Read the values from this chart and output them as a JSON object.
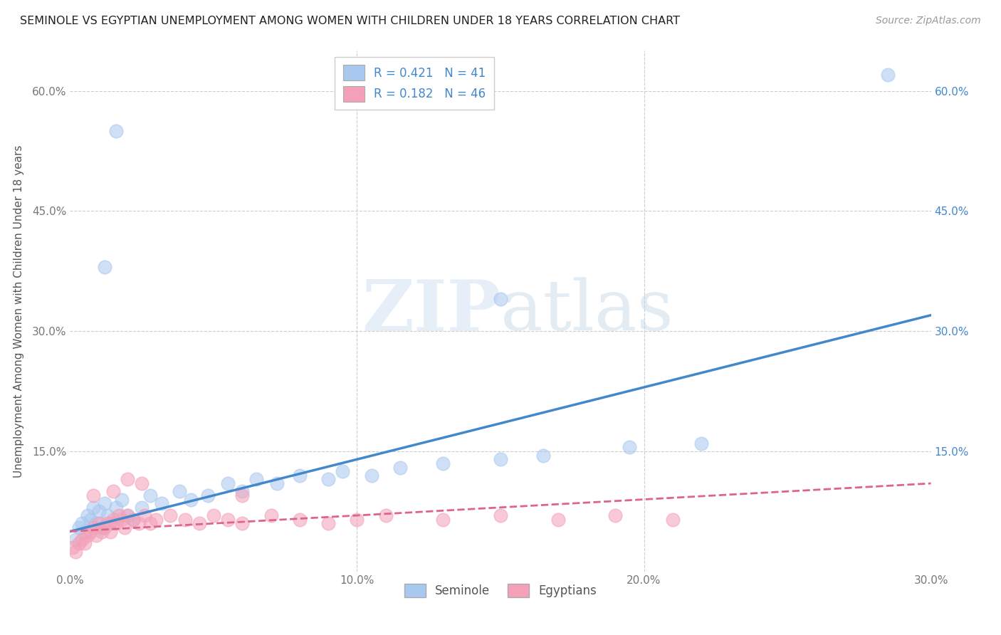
{
  "title": "SEMINOLE VS EGYPTIAN UNEMPLOYMENT AMONG WOMEN WITH CHILDREN UNDER 18 YEARS CORRELATION CHART",
  "source": "Source: ZipAtlas.com",
  "xlim": [
    0.0,
    0.3
  ],
  "ylim": [
    0.0,
    0.65
  ],
  "legend_r1": "R = 0.421",
  "legend_n1": "N = 41",
  "legend_r2": "R = 0.182",
  "legend_n2": "N = 46",
  "seminole_color": "#a8c8f0",
  "egyptian_color": "#f4a0b8",
  "seminole_line_color": "#4488cc",
  "egyptian_line_color": "#dd6688",
  "ylabel": "Unemployment Among Women with Children Under 18 years",
  "seminole_x": [
    0.002,
    0.003,
    0.004,
    0.005,
    0.006,
    0.007,
    0.008,
    0.009,
    0.01,
    0.011,
    0.012,
    0.013,
    0.014,
    0.016,
    0.018,
    0.02,
    0.022,
    0.025,
    0.028,
    0.032,
    0.038,
    0.042,
    0.048,
    0.055,
    0.06,
    0.065,
    0.072,
    0.08,
    0.09,
    0.095,
    0.105,
    0.115,
    0.13,
    0.15,
    0.165,
    0.195,
    0.22,
    0.012,
    0.016,
    0.285,
    0.15
  ],
  "seminole_y": [
    0.04,
    0.055,
    0.06,
    0.05,
    0.07,
    0.065,
    0.08,
    0.06,
    0.075,
    0.055,
    0.085,
    0.07,
    0.06,
    0.08,
    0.09,
    0.07,
    0.065,
    0.08,
    0.095,
    0.085,
    0.1,
    0.09,
    0.095,
    0.11,
    0.1,
    0.115,
    0.11,
    0.12,
    0.115,
    0.125,
    0.12,
    0.13,
    0.135,
    0.14,
    0.145,
    0.155,
    0.16,
    0.38,
    0.55,
    0.62,
    0.34
  ],
  "egyptian_x": [
    0.001,
    0.002,
    0.003,
    0.004,
    0.005,
    0.006,
    0.007,
    0.008,
    0.009,
    0.01,
    0.011,
    0.012,
    0.013,
    0.014,
    0.015,
    0.016,
    0.017,
    0.018,
    0.019,
    0.02,
    0.022,
    0.024,
    0.026,
    0.028,
    0.03,
    0.035,
    0.04,
    0.045,
    0.05,
    0.055,
    0.06,
    0.07,
    0.08,
    0.09,
    0.1,
    0.11,
    0.13,
    0.15,
    0.17,
    0.19,
    0.21,
    0.02,
    0.025,
    0.015,
    0.008,
    0.06
  ],
  "egyptian_y": [
    0.03,
    0.025,
    0.035,
    0.04,
    0.035,
    0.045,
    0.05,
    0.055,
    0.045,
    0.06,
    0.05,
    0.055,
    0.06,
    0.05,
    0.065,
    0.06,
    0.07,
    0.065,
    0.055,
    0.07,
    0.065,
    0.06,
    0.07,
    0.06,
    0.065,
    0.07,
    0.065,
    0.06,
    0.07,
    0.065,
    0.06,
    0.07,
    0.065,
    0.06,
    0.065,
    0.07,
    0.065,
    0.07,
    0.065,
    0.07,
    0.065,
    0.115,
    0.11,
    0.1,
    0.095,
    0.095
  ],
  "blue_line_x": [
    0.0,
    0.3
  ],
  "blue_line_y": [
    0.05,
    0.32
  ],
  "pink_line_x": [
    0.0,
    0.3
  ],
  "pink_line_y": [
    0.05,
    0.11
  ]
}
